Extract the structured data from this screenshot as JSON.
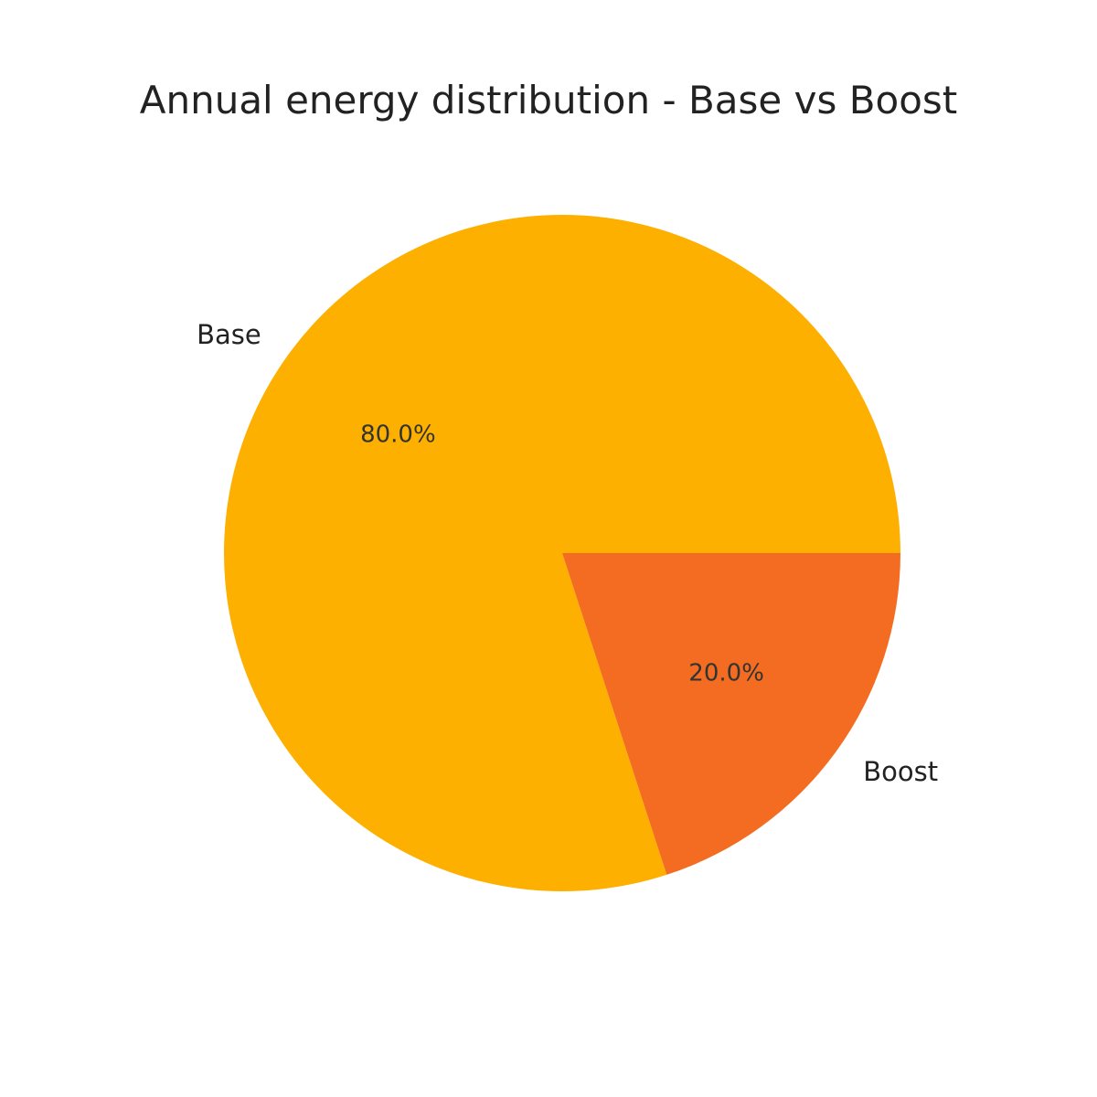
{
  "chart_data": {
    "type": "pie",
    "title": "Annual energy distribution - Base vs Boost",
    "categories": [
      "Base",
      "Boost"
    ],
    "values": [
      80.0,
      20.0
    ],
    "percent_labels": [
      "80.0%",
      "20.0%"
    ],
    "colors": [
      "#FDB000",
      "#F36C21"
    ],
    "start_angle_deg": 0,
    "direction": "counterclockwise",
    "legend": "none"
  }
}
